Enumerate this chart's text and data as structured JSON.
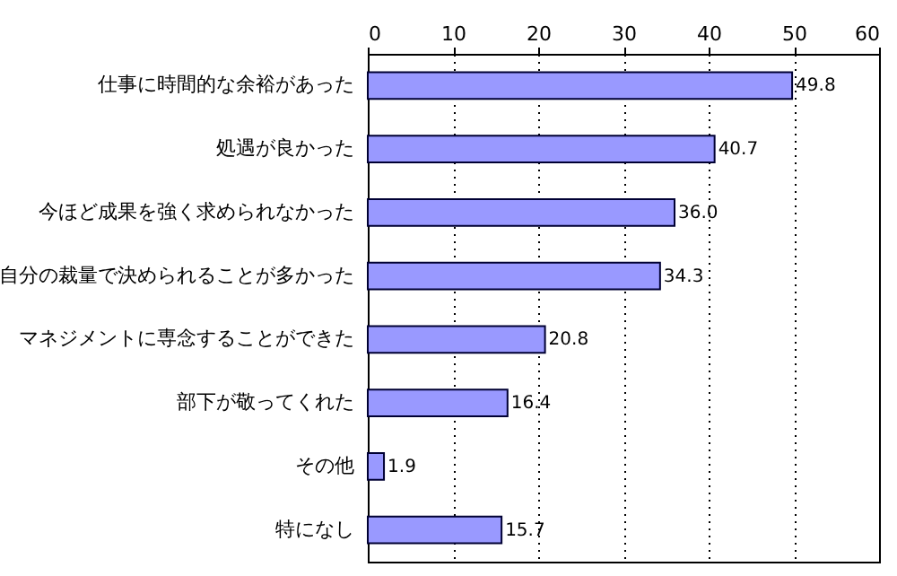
{
  "chart_data": {
    "type": "bar",
    "orientation": "horizontal",
    "categories": [
      "仕事に時間的な余裕があった",
      "処遇が良かった",
      "今ほど成果を強く求められなかった",
      "自分の裁量で決められることが多かった",
      "マネジメントに専念することができた",
      "部下が敬ってくれた",
      "その他",
      "特になし"
    ],
    "values": [
      49.8,
      40.7,
      36.0,
      34.3,
      20.8,
      16.4,
      1.9,
      15.7
    ],
    "value_labels": [
      "49.8",
      "40.7",
      "36.0",
      "34.3",
      "20.8",
      "16.4",
      "1.9",
      "15.7"
    ],
    "color": "#9999ff",
    "xlim": [
      0,
      60
    ],
    "xticks": [
      0,
      10,
      20,
      30,
      40,
      50,
      60
    ],
    "grid": "x"
  }
}
